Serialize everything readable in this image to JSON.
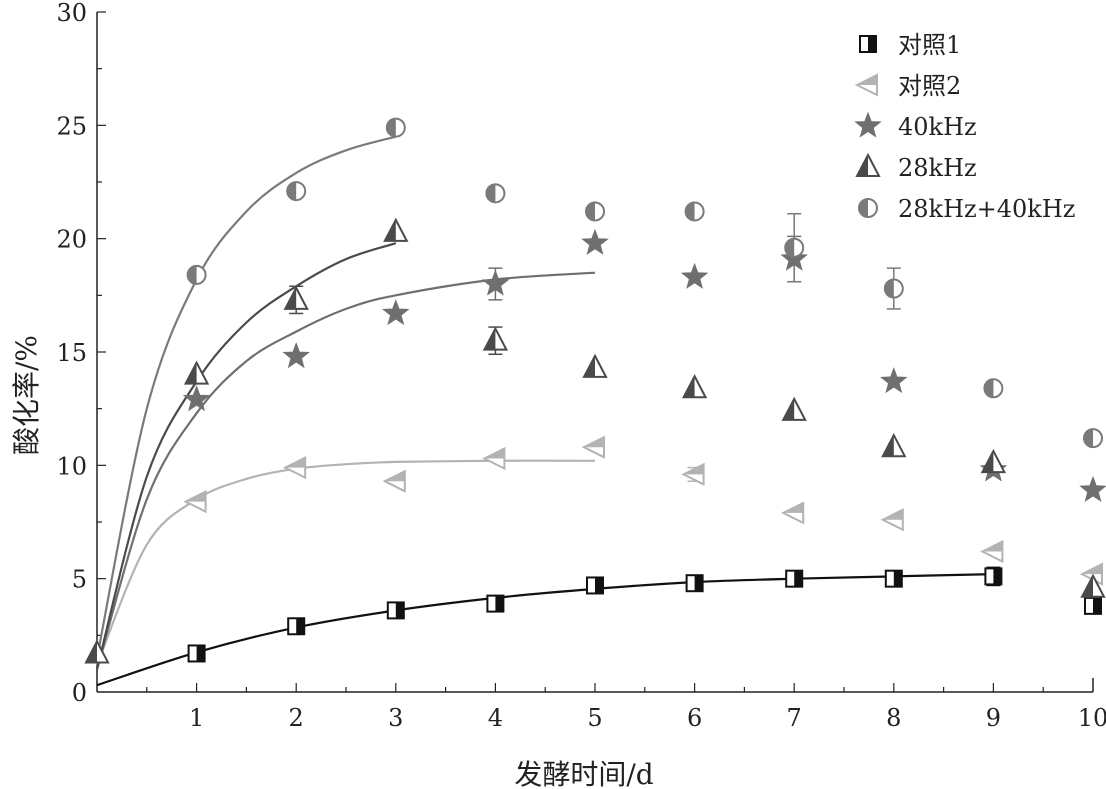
{
  "chart_data": {
    "type": "scatter",
    "title": "",
    "xlabel": "发酵时间/d",
    "ylabel": "酸化率/%",
    "xlim": [
      0,
      10
    ],
    "ylim": [
      0,
      30
    ],
    "x_ticks": [
      "1",
      "2",
      "3",
      "4",
      "5",
      "6",
      "7",
      "8",
      "9",
      "10"
    ],
    "y_ticks": [
      "0",
      "5",
      "10",
      "15",
      "20",
      "25",
      "30"
    ],
    "legend_position": "top-right",
    "grid": false,
    "series": [
      {
        "name": "对照1",
        "marker": "half-filled-square",
        "color": "#111111",
        "x": [
          1,
          2,
          3,
          4,
          5,
          6,
          7,
          8,
          9,
          10
        ],
        "y": [
          1.7,
          2.9,
          3.6,
          3.9,
          4.7,
          4.8,
          5.0,
          5.0,
          5.1,
          3.8
        ],
        "fit": {
          "x": [
            0,
            1,
            2,
            3,
            4,
            5,
            6,
            7,
            8,
            9
          ],
          "y": [
            0.3,
            1.75,
            2.85,
            3.6,
            4.15,
            4.55,
            4.85,
            5.0,
            5.1,
            5.2
          ]
        }
      },
      {
        "name": "对照2",
        "marker": "half-filled-triangle-left",
        "color": "#b3b3b3",
        "x": [
          1,
          2,
          3,
          4,
          5,
          6,
          7,
          8,
          9,
          10
        ],
        "y": [
          8.4,
          9.9,
          9.3,
          10.3,
          10.8,
          9.6,
          7.9,
          7.6,
          6.2,
          5.2
        ],
        "fit": {
          "x": [
            0,
            0.5,
            1,
            1.5,
            2,
            2.5,
            3,
            4,
            5
          ],
          "y": [
            1.2,
            6.5,
            8.5,
            9.4,
            9.85,
            10.05,
            10.15,
            10.2,
            10.2
          ]
        }
      },
      {
        "name": "40kHz",
        "marker": "star",
        "color": "#6f6f6f",
        "x": [
          1,
          2,
          3,
          4,
          5,
          6,
          7,
          8,
          9,
          10
        ],
        "y": [
          12.9,
          14.8,
          16.7,
          18.0,
          19.8,
          18.3,
          19.1,
          13.7,
          9.8,
          8.9
        ],
        "fit": {
          "x": [
            0,
            0.5,
            1,
            1.5,
            2,
            2.5,
            3,
            4,
            5
          ],
          "y": [
            1.0,
            8.5,
            12.3,
            14.6,
            15.9,
            16.9,
            17.5,
            18.2,
            18.5
          ]
        }
      },
      {
        "name": "28kHz",
        "marker": "half-filled-triangle-up",
        "color": "#4a4a4a",
        "x": [
          0,
          1,
          2,
          3,
          4,
          5,
          6,
          7,
          8,
          9,
          10
        ],
        "y": [
          1.7,
          14.0,
          17.3,
          20.3,
          15.5,
          14.3,
          13.4,
          12.4,
          10.8,
          10.1,
          4.6
        ],
        "fit": {
          "x": [
            0,
            0.5,
            1,
            1.5,
            2,
            2.5,
            3
          ],
          "y": [
            1.0,
            9.5,
            13.7,
            16.3,
            17.9,
            19.1,
            19.8
          ]
        }
      },
      {
        "name": "28kHz+40kHz",
        "marker": "half-filled-circle",
        "color": "#7a7a7a",
        "x": [
          1,
          2,
          3,
          4,
          5,
          6,
          7,
          8,
          9,
          10
        ],
        "y": [
          18.4,
          22.1,
          24.9,
          22.0,
          21.2,
          21.2,
          19.6,
          17.8,
          13.4,
          11.2
        ],
        "fit": {
          "x": [
            0,
            0.5,
            1,
            1.5,
            2,
            2.5,
            3
          ],
          "y": [
            1.5,
            12.5,
            18.2,
            21.2,
            22.9,
            23.9,
            24.5
          ]
        }
      }
    ],
    "error_bars": [
      {
        "series": "40kHz",
        "x": 4,
        "y": 18.0,
        "err": 0.7
      },
      {
        "series": "40kHz",
        "x": 7,
        "y": 19.1,
        "err": 1.0
      },
      {
        "series": "28kHz+40kHz",
        "x": 7,
        "y": 19.6,
        "err": 1.5
      },
      {
        "series": "28kHz+40kHz",
        "x": 8,
        "y": 17.8,
        "err": 0.9
      },
      {
        "series": "28kHz",
        "x": 4,
        "y": 15.5,
        "err": 0.6
      },
      {
        "series": "28kHz",
        "x": 2,
        "y": 17.3,
        "err": 0.6
      },
      {
        "series": "对照1",
        "x": 9,
        "y": 5.1,
        "err": 0.4
      },
      {
        "series": "对照2",
        "x": 6,
        "y": 9.6,
        "err": 0.3
      }
    ]
  }
}
